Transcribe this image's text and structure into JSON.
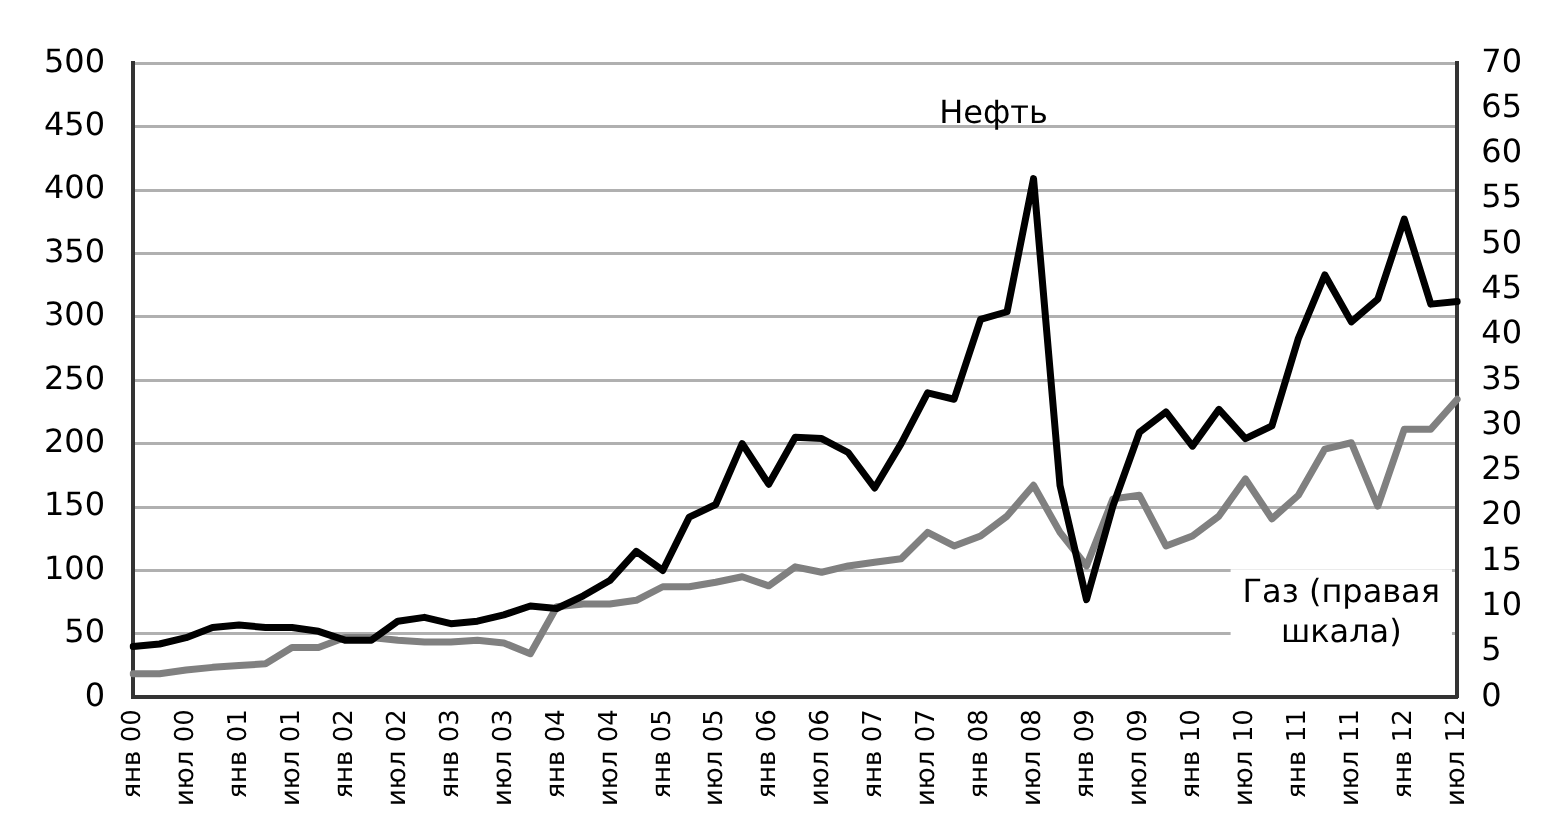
{
  "chart_data": {
    "type": "line",
    "categories": [
      "янв 00",
      null,
      "июл 00",
      null,
      "янв 01",
      null,
      "июл 01",
      null,
      "янв 02",
      null,
      "июл 02",
      null,
      "янв 03",
      null,
      "июл 03",
      null,
      "янв 04",
      null,
      "июл 04",
      null,
      "янв 05",
      null,
      "июл 05",
      null,
      "янв 06",
      null,
      "июл 06",
      null,
      "янв 07",
      null,
      "июл 07",
      null,
      "янв 08",
      null,
      "июл 08",
      null,
      "янв 09",
      null,
      "июл 09",
      null,
      "янв 10",
      null,
      "июл 10",
      null,
      "янв 11",
      null,
      "июл 11",
      null,
      "янв 12",
      null,
      "июл 12"
    ],
    "series": [
      {
        "name": "Нефть",
        "color": "#000000",
        "values": [
          40,
          42,
          47,
          55,
          57,
          55,
          55,
          52,
          45,
          45,
          60,
          63,
          58,
          60,
          65,
          72,
          70,
          80,
          92,
          115,
          100,
          142,
          152,
          200,
          168,
          205,
          204,
          193,
          165,
          200,
          240,
          235,
          298,
          304,
          409,
          167,
          77,
          151,
          209,
          225,
          198,
          227,
          204,
          214,
          283,
          333,
          296,
          314,
          377,
          310,
          312
        ]
      },
      {
        "name": "Газ (правая шкала)",
        "color": "#808080",
        "axis": "y2",
        "values": [
          2.6,
          2.6,
          3.0,
          3.3,
          3.5,
          3.7,
          5.5,
          5.5,
          6.6,
          6.6,
          6.3,
          6.1,
          6.1,
          6.3,
          6.0,
          4.8,
          10,
          10.3,
          10.3,
          10.7,
          12.2,
          12.2,
          12.7,
          13.3,
          12.3,
          14.4,
          13.8,
          14.5,
          14.9,
          15.3,
          18.2,
          16.7,
          17.8,
          20,
          23.4,
          18.2,
          14.5,
          21.9,
          22.3,
          16.7,
          17.8,
          20,
          24.1,
          19.7,
          22.3,
          27.4,
          28.1,
          21.1,
          29.6,
          29.6,
          32.9
        ]
      }
    ],
    "ylim": [
      0,
      500
    ],
    "yticks": [
      0,
      50,
      100,
      150,
      200,
      250,
      300,
      350,
      400,
      450,
      500
    ],
    "y2lim": [
      0,
      70
    ],
    "y2ticks": [
      0,
      5,
      10,
      15,
      20,
      25,
      30,
      35,
      40,
      45,
      50,
      55,
      60,
      65,
      70
    ],
    "grid": "y",
    "legend": false,
    "marker": "none",
    "line_style": "solid"
  }
}
